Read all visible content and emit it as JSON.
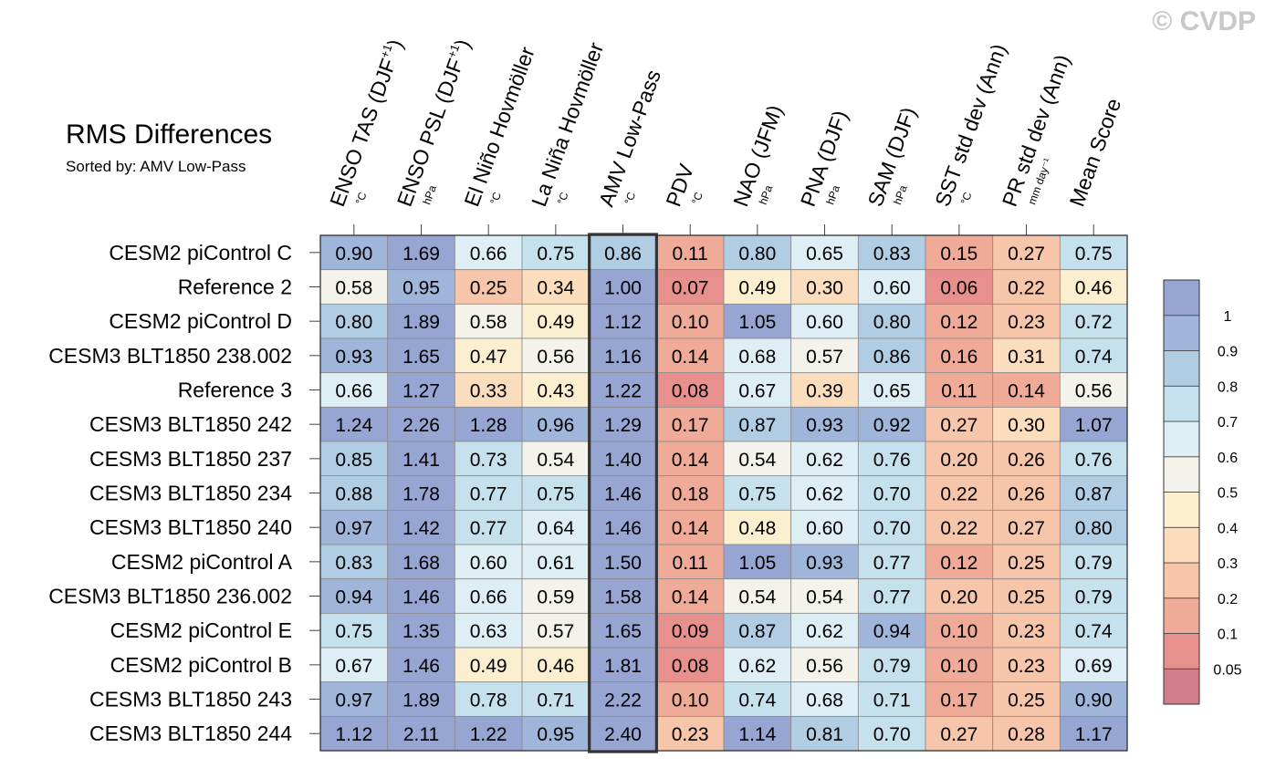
{
  "chart_data": {
    "type": "heatmap",
    "title": "RMS Differences",
    "subtitle": "Sorted by: AMV Low-Pass",
    "watermark": "© CVDP",
    "highlighted_column": "AMV Low-Pass",
    "columns": [
      {
        "label": "ENSO TAS (DJF",
        "sup": "+1",
        "close": ")",
        "unit": "°C"
      },
      {
        "label": "ENSO PSL (DJF",
        "sup": "+1",
        "close": ")",
        "unit": "hPa"
      },
      {
        "label": "El Niño Hovmöller",
        "sup": "",
        "close": "",
        "unit": "°C"
      },
      {
        "label": "La Niña Hovmöller",
        "sup": "",
        "close": "",
        "unit": "°C"
      },
      {
        "label": "AMV Low-Pass",
        "sup": "",
        "close": "",
        "unit": "°C"
      },
      {
        "label": "PDV",
        "sup": "",
        "close": "",
        "unit": "°C"
      },
      {
        "label": "NAO (JFM)",
        "sup": "",
        "close": "",
        "unit": "hPa"
      },
      {
        "label": "PNA (DJF)",
        "sup": "",
        "close": "",
        "unit": "hPa"
      },
      {
        "label": "SAM (DJF)",
        "sup": "",
        "close": "",
        "unit": "hPa"
      },
      {
        "label": "SST std dev (Ann)",
        "sup": "",
        "close": "",
        "unit": "°C"
      },
      {
        "label": "PR std dev (Ann)",
        "sup": "",
        "close": "",
        "unit": "mm day⁻¹"
      },
      {
        "label": "Mean Score",
        "sup": "",
        "close": "",
        "unit": ""
      }
    ],
    "rows": [
      "CESM2 piControl C",
      "Reference 2",
      "CESM2 piControl D",
      "CESM3 BLT1850 238.002",
      "Reference 3",
      "CESM3 BLT1850 242",
      "CESM3 BLT1850 237",
      "CESM3 BLT1850 234",
      "CESM3 BLT1850 240",
      "CESM2 piControl A",
      "CESM3 BLT1850 236.002",
      "CESM2 piControl E",
      "CESM2 piControl B",
      "CESM3 BLT1850 243",
      "CESM3 BLT1850 244"
    ],
    "values": [
      [
        "0.90",
        "1.69",
        "0.66",
        "0.75",
        "0.86",
        "0.11",
        "0.80",
        "0.65",
        "0.83",
        "0.15",
        "0.27",
        "0.75"
      ],
      [
        "0.58",
        "0.95",
        "0.25",
        "0.34",
        "1.00",
        "0.07",
        "0.49",
        "0.30",
        "0.60",
        "0.06",
        "0.22",
        "0.46"
      ],
      [
        "0.80",
        "1.89",
        "0.58",
        "0.49",
        "1.12",
        "0.10",
        "1.05",
        "0.60",
        "0.80",
        "0.12",
        "0.23",
        "0.72"
      ],
      [
        "0.93",
        "1.65",
        "0.47",
        "0.56",
        "1.16",
        "0.14",
        "0.68",
        "0.57",
        "0.86",
        "0.16",
        "0.31",
        "0.74"
      ],
      [
        "0.66",
        "1.27",
        "0.33",
        "0.43",
        "1.22",
        "0.08",
        "0.67",
        "0.39",
        "0.65",
        "0.11",
        "0.14",
        "0.56"
      ],
      [
        "1.24",
        "2.26",
        "1.28",
        "0.96",
        "1.29",
        "0.17",
        "0.87",
        "0.93",
        "0.92",
        "0.27",
        "0.30",
        "1.07"
      ],
      [
        "0.85",
        "1.41",
        "0.73",
        "0.54",
        "1.40",
        "0.14",
        "0.54",
        "0.62",
        "0.76",
        "0.20",
        "0.26",
        "0.76"
      ],
      [
        "0.88",
        "1.78",
        "0.77",
        "0.75",
        "1.46",
        "0.18",
        "0.75",
        "0.62",
        "0.70",
        "0.22",
        "0.26",
        "0.87"
      ],
      [
        "0.97",
        "1.42",
        "0.77",
        "0.64",
        "1.46",
        "0.14",
        "0.48",
        "0.60",
        "0.70",
        "0.22",
        "0.27",
        "0.80"
      ],
      [
        "0.83",
        "1.68",
        "0.60",
        "0.61",
        "1.50",
        "0.11",
        "1.05",
        "0.93",
        "0.77",
        "0.12",
        "0.25",
        "0.79"
      ],
      [
        "0.94",
        "1.46",
        "0.66",
        "0.59",
        "1.58",
        "0.14",
        "0.54",
        "0.54",
        "0.77",
        "0.20",
        "0.25",
        "0.79"
      ],
      [
        "0.75",
        "1.35",
        "0.63",
        "0.57",
        "1.65",
        "0.09",
        "0.87",
        "0.62",
        "0.94",
        "0.10",
        "0.23",
        "0.74"
      ],
      [
        "0.67",
        "1.46",
        "0.49",
        "0.46",
        "1.81",
        "0.08",
        "0.62",
        "0.56",
        "0.79",
        "0.10",
        "0.23",
        "0.69"
      ],
      [
        "0.97",
        "1.89",
        "0.78",
        "0.71",
        "2.22",
        "0.10",
        "0.74",
        "0.68",
        "0.71",
        "0.17",
        "0.25",
        "0.90"
      ],
      [
        "1.12",
        "2.11",
        "1.22",
        "0.95",
        "2.40",
        "0.23",
        "1.14",
        "0.81",
        "0.70",
        "0.27",
        "0.28",
        "1.17"
      ]
    ],
    "colorbar": {
      "tick_labels": [
        "1",
        "0.9",
        "0.8",
        "0.7",
        "0.6",
        "0.5",
        "0.4",
        "0.3",
        "0.2",
        "0.1",
        "0.05"
      ],
      "thresholds": [
        0.05,
        0.1,
        0.2,
        0.3,
        0.4,
        0.5,
        0.6,
        0.7,
        0.8,
        0.9,
        1
      ],
      "colors": [
        "#d27d8c",
        "#e8908e",
        "#f0ab98",
        "#f6c5aa",
        "#fbdcbc",
        "#fcefcf",
        "#f3f3eb",
        "#ddeef5",
        "#c6e1ee",
        "#b0cde4",
        "#9fb6da",
        "#96a5d2"
      ]
    }
  }
}
